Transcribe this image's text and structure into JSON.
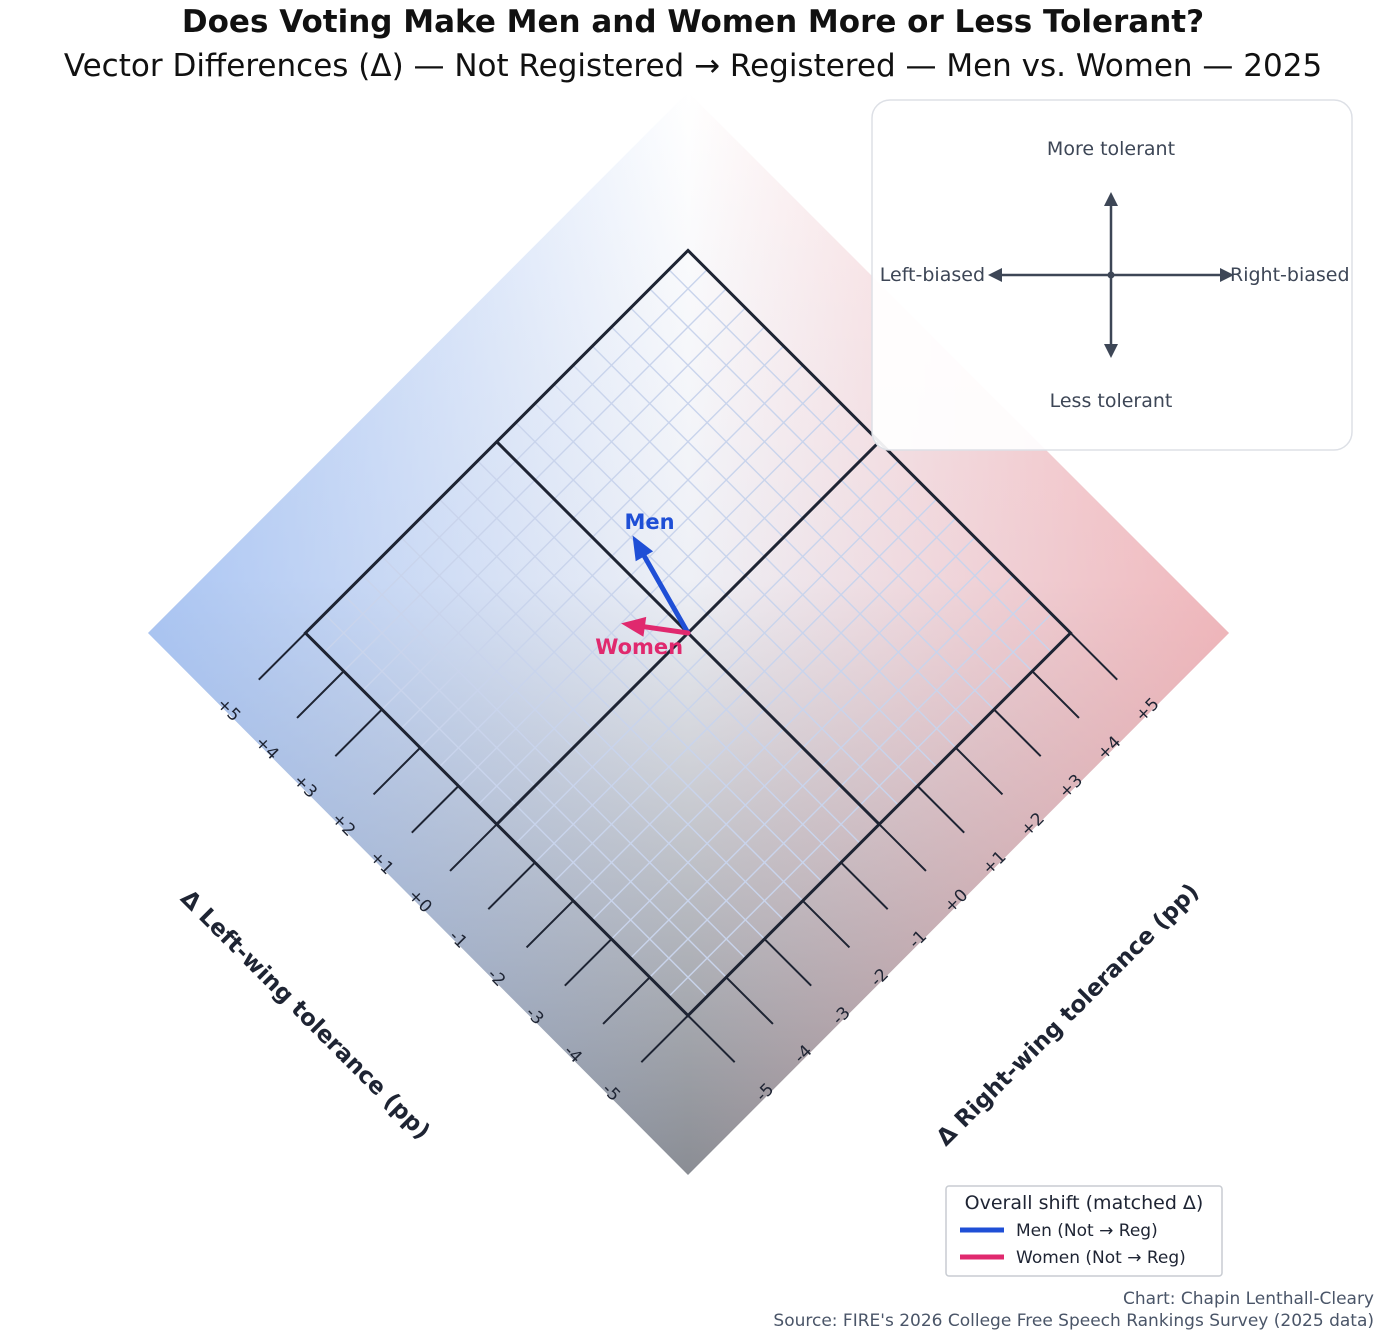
{
  "chart_data": {
    "type": "diamond-vector",
    "title": "Does Voting Make Men and Women More or Less Tolerant?",
    "subtitle": "Vector Differences (Δ) — Not Registered → Registered — Men vs. Women — 2025",
    "left_axis": {
      "label": "Δ Left-wing tolerance (pp)",
      "range": [
        -5,
        5
      ],
      "tick_labels": [
        "-5",
        "-4",
        "-3",
        "-2",
        "-1",
        "+0",
        "+1",
        "+2",
        "+3",
        "+4",
        "+5"
      ]
    },
    "right_axis": {
      "label": "Δ Right-wing tolerance (pp)",
      "range": [
        -5,
        5
      ],
      "tick_labels": [
        "-5",
        "-4",
        "-3",
        "-2",
        "-1",
        "+0",
        "+1",
        "+2",
        "+3",
        "+4",
        "+5"
      ]
    },
    "series": [
      {
        "name": "Men",
        "legend": "Men (Not → Reg)",
        "color": "#1f4fd6",
        "left": 2.0,
        "right": 0.55
      },
      {
        "name": "Women",
        "legend": "Women (Not → Reg)",
        "color": "#e0296e",
        "left": 1.0,
        "right": -0.75
      }
    ],
    "inset": {
      "up": "More tolerant",
      "down": "Less tolerant",
      "left": "Left-biased",
      "right": "Right-biased"
    },
    "legend": {
      "title": "Overall shift (matched Δ)",
      "position": "bottom-right"
    }
  },
  "credit": {
    "author": "Chart: Chapin Lenthall-Cleary",
    "source": "Source: FIRE's 2026 College Free Speech Rankings Survey (2025 data)"
  }
}
